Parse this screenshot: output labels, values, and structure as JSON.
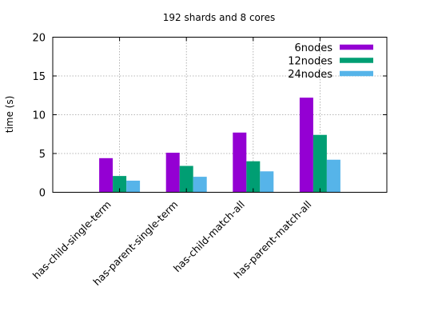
{
  "chart_data": {
    "type": "bar",
    "title": "192 shards and 8 cores",
    "xlabel": "",
    "ylabel": "time (s)",
    "ylim": [
      0,
      20
    ],
    "yticks": [
      0,
      5,
      10,
      15,
      20
    ],
    "grid": true,
    "legend_position": "top-right",
    "categories": [
      "has-child-single-term",
      "has-parent-single-term",
      "has-child-match-all",
      "has-parent-match-all"
    ],
    "series": [
      {
        "name": "6nodes",
        "color": "#9400d3",
        "values": [
          4.4,
          5.1,
          7.7,
          12.2
        ]
      },
      {
        "name": "12nodes",
        "color": "#009e73",
        "values": [
          2.1,
          3.4,
          4.0,
          7.4
        ]
      },
      {
        "name": "24nodes",
        "color": "#56b4e9",
        "values": [
          1.5,
          2.0,
          2.7,
          4.2
        ]
      }
    ]
  }
}
